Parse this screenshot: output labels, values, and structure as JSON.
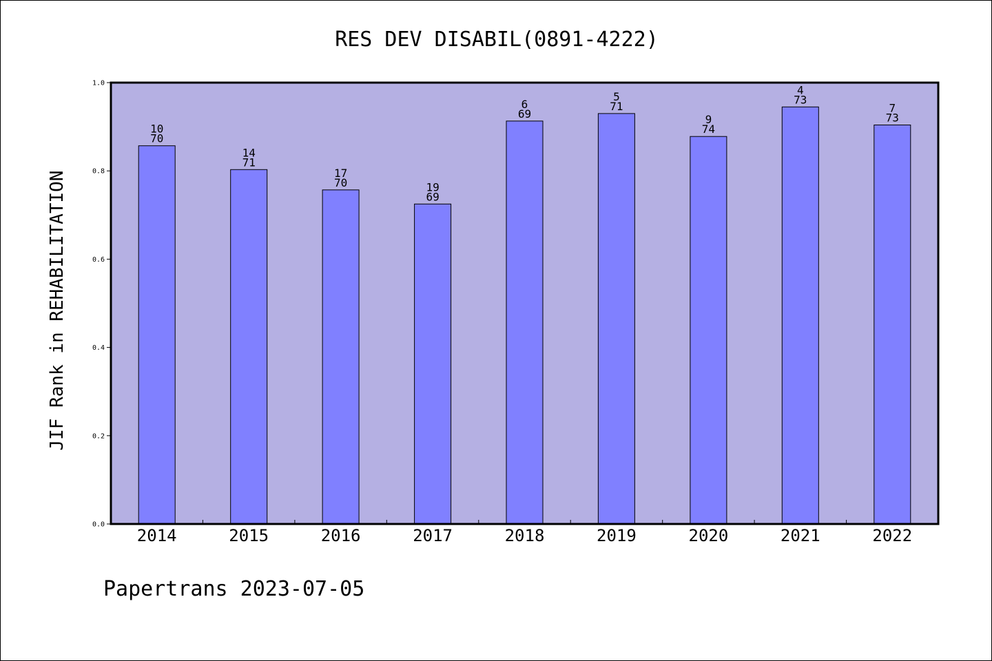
{
  "chart_data": {
    "type": "bar",
    "title": "RES DEV DISABIL(0891-4222)",
    "ylabel": "JIF Rank in REHABILITATION",
    "xlabel": "",
    "categories": [
      "2014",
      "2015",
      "2016",
      "2017",
      "2018",
      "2019",
      "2020",
      "2021",
      "2022"
    ],
    "values": [
      0.857,
      0.803,
      0.757,
      0.725,
      0.913,
      0.93,
      0.878,
      0.945,
      0.904
    ],
    "rank": [
      "10",
      "14",
      "17",
      "19",
      "6",
      "5",
      "9",
      "4",
      "7"
    ],
    "total": [
      "70",
      "71",
      "70",
      "69",
      "69",
      "71",
      "74",
      "73",
      "73"
    ],
    "ylim": [
      0.0,
      1.0
    ],
    "yticks": [
      "0.0",
      "0.2",
      "0.4",
      "0.6",
      "0.8",
      "1.0"
    ],
    "grid": false,
    "colors": {
      "plot_background": "#b5b0e3",
      "bar_fill": "#8080ff",
      "bar_stroke": "#000000"
    }
  },
  "footer": "Papertrans 2023-07-05"
}
